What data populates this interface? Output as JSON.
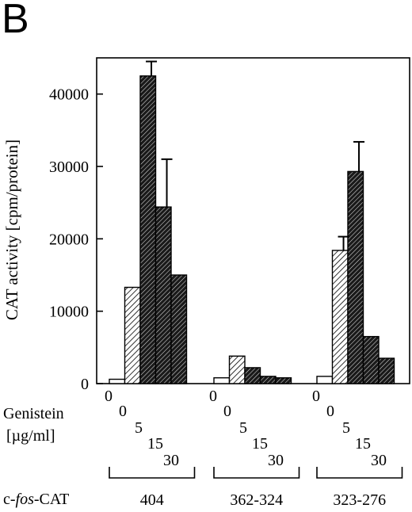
{
  "panel_label": "B",
  "chart_data": {
    "type": "bar",
    "ylabel": "CAT activity [cpm/protein]",
    "ylim": [
      0,
      45000
    ],
    "yticks": [
      0,
      10000,
      20000,
      30000,
      40000
    ],
    "ytick_labels": [
      "0",
      "10000",
      "20000",
      "30000",
      "40000"
    ],
    "treatment_label_line1": "Genistein",
    "treatment_label_line2": "[µg/ml]",
    "construct_label_prefix": "c-",
    "construct_label_italic": "fos",
    "construct_label_suffix": "-CAT",
    "dose_labels": [
      "0",
      "0",
      "5",
      "15",
      "30"
    ],
    "bar_styles": [
      "white",
      "light-hatch",
      "dark-hatch",
      "dark-hatch",
      "dark-hatch"
    ],
    "groups": [
      {
        "name": "404",
        "values": [
          600,
          13300,
          42500,
          24400,
          15000
        ],
        "errors": [
          null,
          null,
          2000,
          6600,
          null
        ]
      },
      {
        "name": "362-324",
        "values": [
          800,
          3800,
          2200,
          1000,
          800
        ],
        "errors": [
          null,
          null,
          null,
          null,
          null
        ]
      },
      {
        "name": "323-276",
        "values": [
          1000,
          18400,
          29300,
          6500,
          3500
        ],
        "errors": [
          null,
          1900,
          4100,
          null,
          null
        ]
      }
    ]
  }
}
